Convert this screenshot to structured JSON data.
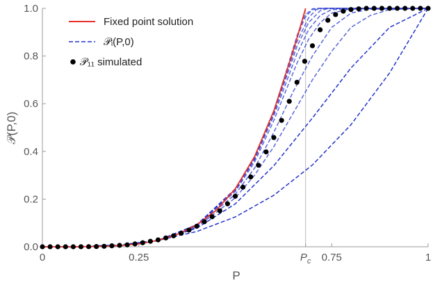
{
  "chart_data": {
    "type": "line",
    "xlabel": "P",
    "ylabel": "𝒫(P,0)",
    "xlim": [
      0,
      1
    ],
    "ylim": [
      0,
      1
    ],
    "x_ticks": [
      "0",
      "0.25",
      "P_c",
      "0.75",
      "1"
    ],
    "x_tick_values": [
      0,
      0.25,
      0.6823,
      0.75,
      1
    ],
    "y_ticks": [
      "0.0",
      "0.2",
      "0.4",
      "0.6",
      "0.8",
      "1.0"
    ],
    "y_tick_values": [
      0,
      0.2,
      0.4,
      0.6,
      0.8,
      1.0
    ],
    "critical_point": {
      "label": "P_c",
      "x": 0.6823
    },
    "legend_position": "top-left",
    "legend": [
      {
        "label": "Fixed point solution",
        "style": "solid-line",
        "color": "#e8302a"
      },
      {
        "label": "𝒫ᵢ(P,0)",
        "style": "dashed-line",
        "color": "#2233cc"
      },
      {
        "label": "𝒫₁₁ simulated",
        "style": "dot",
        "color": "#000000"
      }
    ],
    "series": [
      {
        "name": "Fixed point solution",
        "kind": "solid",
        "color": "#e8302a",
        "x": [
          0,
          0.05,
          0.1,
          0.15,
          0.2,
          0.25,
          0.3,
          0.35,
          0.4,
          0.45,
          0.5,
          0.55,
          0.6,
          0.62,
          0.64,
          0.66,
          0.6823
        ],
        "y": [
          0,
          0,
          0.0003,
          0.0015,
          0.005,
          0.012,
          0.027,
          0.052,
          0.092,
          0.152,
          0.243,
          0.378,
          0.57,
          0.67,
          0.77,
          0.875,
          1.0
        ]
      },
      {
        "name": "𝒫ᵢ(P,0)",
        "kind": "dashed",
        "color": "#2233cc",
        "curves": [
          {
            "x": [
              0,
              0.1,
              0.2,
              0.3,
              0.4,
              0.5,
              0.6,
              0.7,
              0.8,
              0.9,
              1.0
            ],
            "y": [
              0,
              0.001,
              0.008,
              0.027,
              0.064,
              0.125,
              0.216,
              0.343,
              0.512,
              0.729,
              1.0
            ]
          },
          {
            "x": [
              0,
              0.1,
              0.2,
              0.3,
              0.4,
              0.5,
              0.6,
              0.7,
              0.8,
              0.9,
              1.0
            ],
            "y": [
              0,
              0.0001,
              0.005,
              0.025,
              0.078,
              0.18,
              0.34,
              0.54,
              0.75,
              0.92,
              1.0
            ]
          },
          {
            "x": [
              0,
              0.1,
              0.2,
              0.3,
              0.4,
              0.5,
              0.55,
              0.6,
              0.65,
              0.7,
              0.75,
              0.8,
              0.85,
              0.9,
              1.0
            ],
            "y": [
              0,
              0.0001,
              0.005,
              0.026,
              0.082,
              0.205,
              0.3,
              0.42,
              0.56,
              0.7,
              0.82,
              0.92,
              0.97,
              0.995,
              1.0
            ]
          },
          {
            "x": [
              0,
              0.1,
              0.2,
              0.3,
              0.4,
              0.5,
              0.55,
              0.6,
              0.65,
              0.7,
              0.75,
              0.8,
              0.85,
              1.0
            ],
            "y": [
              0,
              0.0002,
              0.005,
              0.027,
              0.085,
              0.22,
              0.33,
              0.48,
              0.65,
              0.8,
              0.92,
              0.98,
              0.997,
              1.0
            ]
          },
          {
            "x": [
              0,
              0.1,
              0.2,
              0.3,
              0.4,
              0.5,
              0.55,
              0.6,
              0.63,
              0.66,
              0.69,
              0.72,
              0.75,
              0.8,
              1.0
            ],
            "y": [
              0,
              0.0003,
              0.005,
              0.027,
              0.088,
              0.232,
              0.355,
              0.53,
              0.65,
              0.77,
              0.87,
              0.94,
              0.98,
              0.998,
              1.0
            ]
          },
          {
            "x": [
              0,
              0.1,
              0.2,
              0.3,
              0.4,
              0.5,
              0.55,
              0.6,
              0.63,
              0.66,
              0.69,
              0.72,
              0.75,
              1.0
            ],
            "y": [
              0,
              0.0003,
              0.005,
              0.027,
              0.09,
              0.237,
              0.365,
              0.55,
              0.68,
              0.81,
              0.91,
              0.97,
              0.995,
              1.0
            ]
          },
          {
            "x": [
              0,
              0.1,
              0.2,
              0.3,
              0.4,
              0.5,
              0.55,
              0.6,
              0.63,
              0.66,
              0.69,
              0.72,
              0.74,
              1.0
            ],
            "y": [
              0,
              0.0003,
              0.005,
              0.027,
              0.091,
              0.24,
              0.37,
              0.56,
              0.7,
              0.84,
              0.94,
              0.99,
              0.999,
              1.0
            ]
          },
          {
            "x": [
              0,
              0.1,
              0.2,
              0.3,
              0.4,
              0.5,
              0.55,
              0.6,
              0.63,
              0.66,
              0.69,
              0.71,
              0.73,
              1.0
            ],
            "y": [
              0,
              0.0003,
              0.005,
              0.027,
              0.092,
              0.241,
              0.373,
              0.565,
              0.71,
              0.86,
              0.96,
              0.995,
              1.0,
              1.0
            ]
          },
          {
            "x": [
              0,
              0.1,
              0.2,
              0.3,
              0.4,
              0.5,
              0.55,
              0.6,
              0.63,
              0.66,
              0.68,
              0.7,
              0.72,
              1.0
            ],
            "y": [
              0,
              0.0003,
              0.005,
              0.027,
              0.092,
              0.242,
              0.375,
              0.568,
              0.72,
              0.875,
              0.96,
              0.995,
              1.0,
              1.0
            ]
          },
          {
            "x": [
              0,
              0.1,
              0.2,
              0.3,
              0.4,
              0.5,
              0.55,
              0.6,
              0.63,
              0.66,
              0.68,
              0.7,
              0.71,
              1.0
            ],
            "y": [
              0,
              0.0003,
              0.005,
              0.027,
              0.092,
              0.243,
              0.377,
              0.57,
              0.725,
              0.885,
              0.97,
              0.998,
              1.0,
              1.0
            ]
          }
        ]
      },
      {
        "name": "𝒫₁₁ simulated",
        "kind": "dots",
        "color": "#000000",
        "x": [
          0,
          0.02,
          0.04,
          0.06,
          0.08,
          0.1,
          0.12,
          0.14,
          0.16,
          0.18,
          0.2,
          0.22,
          0.24,
          0.26,
          0.28,
          0.3,
          0.32,
          0.34,
          0.36,
          0.38,
          0.4,
          0.42,
          0.44,
          0.46,
          0.48,
          0.5,
          0.52,
          0.54,
          0.56,
          0.58,
          0.6,
          0.62,
          0.64,
          0.66,
          0.68,
          0.7,
          0.72,
          0.74,
          0.76,
          0.78,
          0.8,
          0.82,
          0.84,
          0.86,
          0.88,
          0.9,
          0.92,
          0.94,
          0.96,
          0.98,
          1.0
        ],
        "y": [
          0,
          0,
          0,
          0,
          0,
          0.0002,
          0.0005,
          0.001,
          0.002,
          0.004,
          0.006,
          0.008,
          0.012,
          0.017,
          0.023,
          0.029,
          0.037,
          0.046,
          0.057,
          0.07,
          0.086,
          0.105,
          0.126,
          0.151,
          0.18,
          0.212,
          0.25,
          0.293,
          0.342,
          0.398,
          0.458,
          0.53,
          0.61,
          0.69,
          0.778,
          0.843,
          0.91,
          0.95,
          0.974,
          0.988,
          0.995,
          0.998,
          1.0,
          1.0,
          1.0,
          1.0,
          1.0,
          1.0,
          1.0,
          1.0,
          1.0
        ]
      }
    ]
  }
}
